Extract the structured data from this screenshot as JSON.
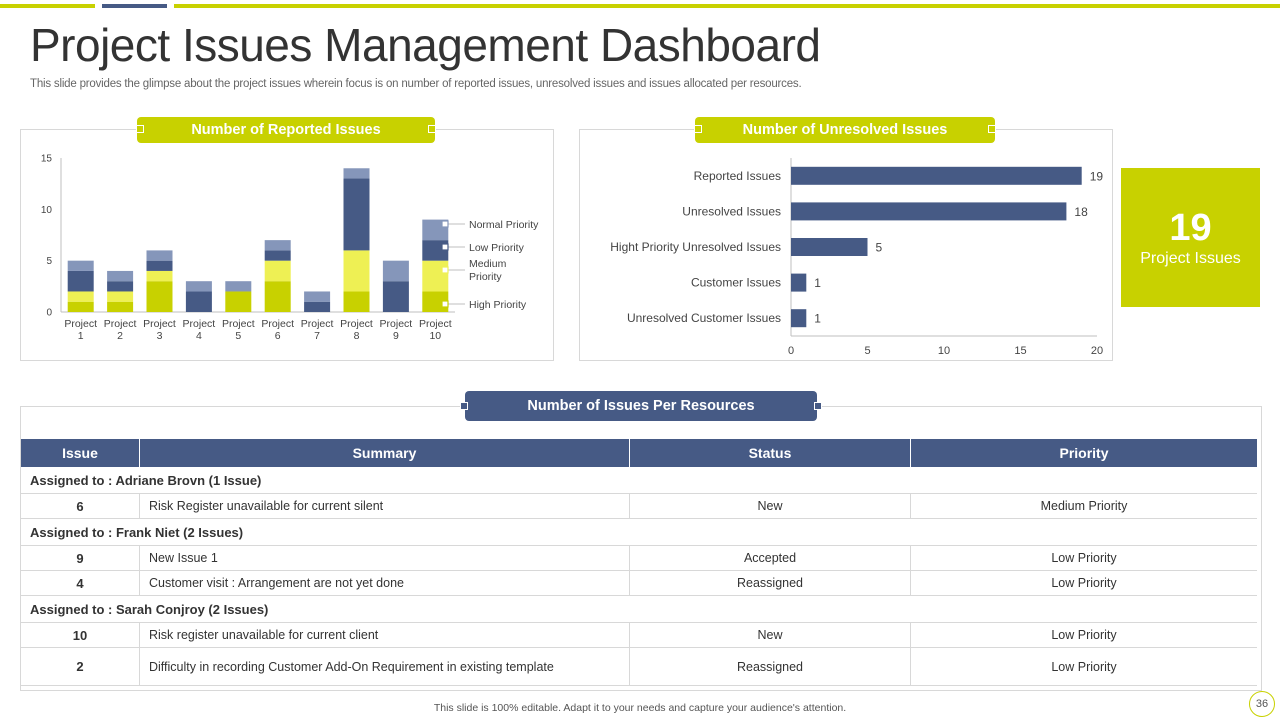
{
  "header": {
    "title": "Project Issues Management Dashboard",
    "subtitle": "This slide provides the glimpse about the project issues wherein focus is on number of reported issues, unresolved issues and issues allocated per resources."
  },
  "colors": {
    "accent_yellow": "#c8d100",
    "navy": "#465a85",
    "light_blue": "#8596ba",
    "bright_yellow": "#eef054",
    "olive": "#c8d100"
  },
  "chart_data": [
    {
      "type": "bar",
      "stacked": true,
      "title": "Number of Reported Issues",
      "categories": [
        "Project 1",
        "Project 2",
        "Project 3",
        "Project 4",
        "Project 5",
        "Project 6",
        "Project 7",
        "Project 8",
        "Project 9",
        "Project 10"
      ],
      "series": [
        {
          "name": "High Priority",
          "color": "#c8d100",
          "values": [
            1,
            1,
            3,
            0,
            2,
            3,
            0,
            2,
            0,
            2
          ]
        },
        {
          "name": "Medium Priority",
          "color": "#eef054",
          "values": [
            1,
            1,
            1,
            0,
            0,
            2,
            0,
            4,
            0,
            3
          ]
        },
        {
          "name": "Low Priority",
          "color": "#465a85",
          "values": [
            2,
            1,
            1,
            2,
            0,
            1,
            1,
            7,
            3,
            2
          ]
        },
        {
          "name": "Normal Priority",
          "color": "#8596ba",
          "values": [
            1,
            1,
            1,
            1,
            1,
            1,
            1,
            1,
            2,
            2
          ]
        }
      ],
      "ylim": [
        0,
        15
      ],
      "yticks": [
        0,
        5,
        10,
        15
      ],
      "legend_position": "right"
    },
    {
      "type": "bar",
      "orientation": "horizontal",
      "title": "Number of Unresolved Issues",
      "categories": [
        "Reported Issues",
        "Unresolved Issues",
        "Hight Priority Unresolved Issues",
        "Customer Issues",
        "Unresolved Customer Issues"
      ],
      "values": [
        19,
        18,
        5,
        1,
        1
      ],
      "xlim": [
        0,
        20
      ],
      "xticks": [
        0,
        5,
        10,
        15,
        20
      ],
      "color": "#465a85"
    }
  ],
  "kpi": {
    "value": "19",
    "label": "Project Issues"
  },
  "resources": {
    "title": "Number of Issues Per Resources",
    "columns": [
      "Issue",
      "Summary",
      "Status",
      "Priority"
    ],
    "groups": [
      {
        "assigned": "Assigned to : Adriane Brovn (1 Issue)",
        "rows": [
          {
            "issue": "6",
            "summary": "Risk Register unavailable for current silent",
            "status": "New",
            "priority": "Medium Priority"
          }
        ]
      },
      {
        "assigned": "Assigned to : Frank Niet (2 Issues)",
        "rows": [
          {
            "issue": "9",
            "summary": "New Issue 1",
            "status": "Accepted",
            "priority": "Low Priority"
          },
          {
            "issue": "4",
            "summary": "Customer visit : Arrangement are not yet done",
            "status": "Reassigned",
            "priority": "Low Priority"
          }
        ]
      },
      {
        "assigned": "Assigned to : Sarah Conjroy (2 Issues)",
        "rows": [
          {
            "issue": "10",
            "summary": "Risk register unavailable for current client",
            "status": "New",
            "priority": "Low Priority"
          },
          {
            "issue": "2",
            "summary": "Difficulty in recording Customer Add-On Requirement in existing template",
            "status": "Reassigned",
            "priority": "Low Priority"
          }
        ]
      }
    ]
  },
  "footer": {
    "note": "This slide is 100% editable. Adapt it to your needs and capture your audience's attention.",
    "page": "36"
  }
}
